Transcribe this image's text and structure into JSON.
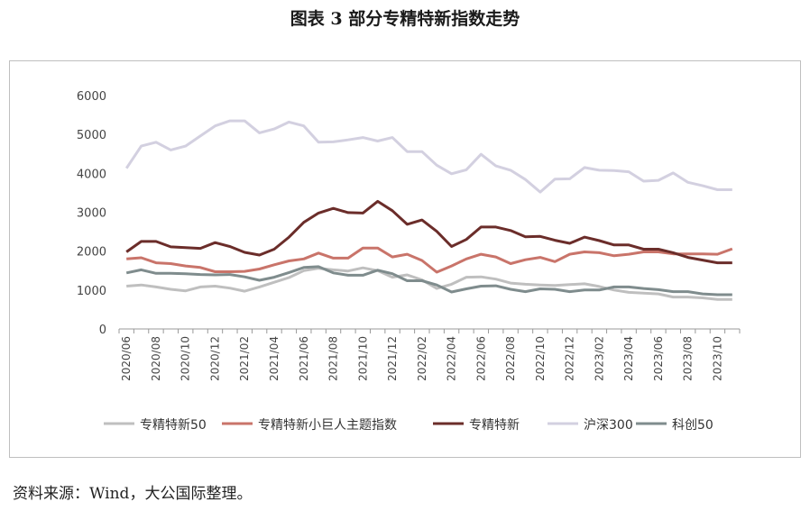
{
  "title": "图表 3  部分专精特新指数走势",
  "source": "资料来源：Wind，大公国际整理。",
  "chart_data": {
    "type": "line",
    "title": "图表 3  部分专精特新指数走势",
    "xlabel": "",
    "ylabel": "",
    "ylim": [
      0,
      6000
    ],
    "yticks": [
      0,
      1000,
      2000,
      3000,
      4000,
      5000,
      6000
    ],
    "grid": false,
    "legend_position": "bottom",
    "x": [
      "2020/06",
      "2020/07",
      "2020/08",
      "2020/09",
      "2020/10",
      "2020/11",
      "2020/12",
      "2021/01",
      "2021/02",
      "2021/03",
      "2021/04",
      "2021/05",
      "2021/06",
      "2021/07",
      "2021/08",
      "2021/09",
      "2021/10",
      "2021/11",
      "2021/12",
      "2022/01",
      "2022/02",
      "2022/03",
      "2022/04",
      "2022/05",
      "2022/06",
      "2022/07",
      "2022/08",
      "2022/09",
      "2022/10",
      "2022/11",
      "2022/12",
      "2023/01",
      "2023/02",
      "2023/03",
      "2023/04",
      "2023/05",
      "2023/06",
      "2023/07",
      "2023/08",
      "2023/09",
      "2023/10",
      "2023/11"
    ],
    "xtick_labels": [
      "2020/06",
      "2020/08",
      "2020/10",
      "2020/12",
      "2021/02",
      "2021/04",
      "2021/06",
      "2021/08",
      "2021/10",
      "2021/12",
      "2022/02",
      "2022/04",
      "2022/06",
      "2022/08",
      "2022/10",
      "2022/12",
      "2023/02",
      "2023/04",
      "2023/06",
      "2023/08",
      "2023/10"
    ],
    "series": [
      {
        "name": "专精特新50",
        "color": "#bfbfbf",
        "values": [
          1100,
          1130,
          1080,
          1020,
          980,
          1080,
          1100,
          1050,
          970,
          1080,
          1200,
          1320,
          1500,
          1560,
          1520,
          1490,
          1570,
          1500,
          1330,
          1390,
          1260,
          1040,
          1150,
          1330,
          1340,
          1280,
          1180,
          1150,
          1130,
          1120,
          1140,
          1160,
          1090,
          1000,
          940,
          920,
          900,
          820,
          820,
          800,
          760,
          760
        ]
      },
      {
        "name": "专精特新小巨人主题指数",
        "color": "#c9746a",
        "values": [
          1800,
          1830,
          1700,
          1680,
          1620,
          1580,
          1470,
          1470,
          1480,
          1540,
          1650,
          1750,
          1800,
          1950,
          1820,
          1820,
          2080,
          2080,
          1850,
          1920,
          1760,
          1460,
          1620,
          1800,
          1920,
          1850,
          1680,
          1780,
          1840,
          1730,
          1920,
          1980,
          1960,
          1880,
          1920,
          1980,
          1980,
          1930,
          1930,
          1930,
          1920,
          2060
        ]
      },
      {
        "name": "专精特新",
        "color": "#6b2d2a",
        "values": [
          1980,
          2250,
          2250,
          2110,
          2090,
          2070,
          2220,
          2120,
          1970,
          1900,
          2050,
          2360,
          2740,
          2980,
          3100,
          2990,
          2980,
          3280,
          3040,
          2690,
          2800,
          2510,
          2120,
          2300,
          2620,
          2620,
          2530,
          2370,
          2380,
          2280,
          2200,
          2360,
          2270,
          2160,
          2160,
          2050,
          2050,
          1960,
          1840,
          1770,
          1700,
          1700
        ]
      },
      {
        "name": "沪深300",
        "color": "#d3d0e0",
        "values": [
          4130,
          4700,
          4800,
          4600,
          4700,
          4960,
          5220,
          5350,
          5350,
          5040,
          5140,
          5320,
          5220,
          4800,
          4810,
          4860,
          4920,
          4830,
          4920,
          4560,
          4560,
          4210,
          3990,
          4090,
          4490,
          4190,
          4080,
          3840,
          3520,
          3850,
          3860,
          4150,
          4080,
          4070,
          4040,
          3800,
          3820,
          4010,
          3770,
          3680,
          3580,
          3580
        ]
      },
      {
        "name": "科创50",
        "color": "#7f8c8d",
        "values": [
          1440,
          1520,
          1430,
          1430,
          1420,
          1400,
          1390,
          1400,
          1340,
          1250,
          1330,
          1450,
          1580,
          1600,
          1440,
          1380,
          1380,
          1510,
          1420,
          1240,
          1240,
          1130,
          950,
          1030,
          1100,
          1110,
          1020,
          960,
          1030,
          1020,
          960,
          1000,
          1000,
          1080,
          1080,
          1040,
          1010,
          960,
          960,
          900,
          880,
          880
        ]
      }
    ]
  }
}
